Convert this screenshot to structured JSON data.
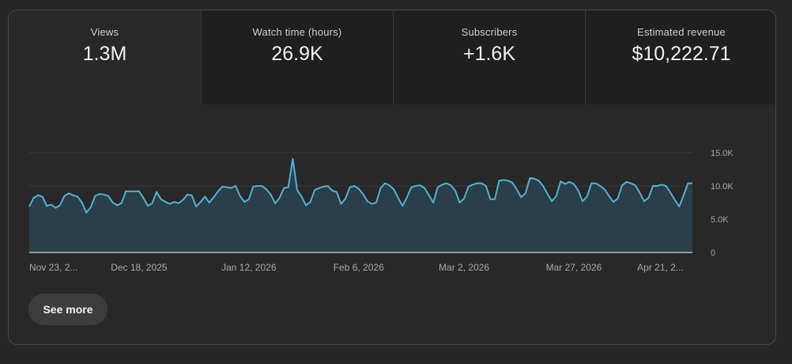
{
  "metrics": [
    {
      "label": "Views",
      "value": "1.3M"
    },
    {
      "label": "Watch time (hours)",
      "value": "26.9K"
    },
    {
      "label": "Subscribers",
      "value": "+1.6K"
    },
    {
      "label": "Estimated revenue",
      "value": "$10,222.71"
    }
  ],
  "see_more_label": "See more",
  "colors": {
    "line": "#4fb3d9",
    "fill": "#2b3f4a",
    "baseline": "#9a9a9a",
    "grid": "#3a3a3a"
  },
  "chart_data": {
    "type": "area",
    "title": "",
    "xlabel": "",
    "ylabel": "",
    "ylim": [
      0,
      15000
    ],
    "y_ticks": [
      {
        "value": 0,
        "label": "0"
      },
      {
        "value": 5000,
        "label": "5.0K"
      },
      {
        "value": 10000,
        "label": "10.0K"
      },
      {
        "value": 15000,
        "label": "15.0K"
      }
    ],
    "x_ticks": [
      {
        "label": "Nov 23, 2...",
        "index": 0
      },
      {
        "label": "Dec 18, 2025",
        "index": 25
      },
      {
        "label": "Jan 12, 2026",
        "index": 50
      },
      {
        "label": "Feb 6, 2026",
        "index": 75
      },
      {
        "label": "Mar 2, 2026",
        "index": 99
      },
      {
        "label": "Mar 27, 2026",
        "index": 124
      },
      {
        "label": "Apr 21, 2...",
        "index": 149
      }
    ],
    "grid": true,
    "series": [
      {
        "values": [
          6900,
          8200,
          8600,
          8400,
          7000,
          7200,
          6700,
          7100,
          8500,
          8900,
          8600,
          8400,
          7500,
          6000,
          6800,
          8500,
          8800,
          8700,
          8500,
          7500,
          7100,
          7400,
          9200,
          9200,
          9200,
          9200,
          8200,
          7000,
          7400,
          9100,
          8000,
          7600,
          7300,
          7600,
          7400,
          7900,
          8700,
          8600,
          6900,
          7600,
          8400,
          7500,
          8300,
          9200,
          9900,
          9800,
          9700,
          10000,
          8500,
          7600,
          8000,
          9900,
          10000,
          10000,
          9500,
          8700,
          7400,
          8200,
          9700,
          9800,
          14100,
          9400,
          8400,
          7100,
          7600,
          9400,
          9700,
          9900,
          10000,
          9300,
          9100,
          7300,
          8100,
          9800,
          10000,
          9600,
          8800,
          7700,
          7300,
          7500,
          9700,
          10400,
          10100,
          9500,
          8200,
          7000,
          8300,
          9800,
          10000,
          10100,
          9700,
          8600,
          7500,
          9800,
          10200,
          10400,
          10100,
          9300,
          7500,
          8100,
          9900,
          10200,
          10400,
          10400,
          10000,
          8000,
          8000,
          10800,
          10900,
          10800,
          10500,
          9500,
          8300,
          8900,
          11200,
          11100,
          10800,
          10000,
          8800,
          7700,
          8500,
          10700,
          10300,
          10600,
          10300,
          9300,
          7700,
          8400,
          10400,
          10400,
          10000,
          9500,
          8500,
          7600,
          8100,
          10100,
          10600,
          10400,
          10100,
          9000,
          7700,
          8200,
          10000,
          10000,
          10200,
          10000,
          9000,
          7900,
          6900,
          8600,
          10400,
          10400
        ]
      }
    ]
  }
}
